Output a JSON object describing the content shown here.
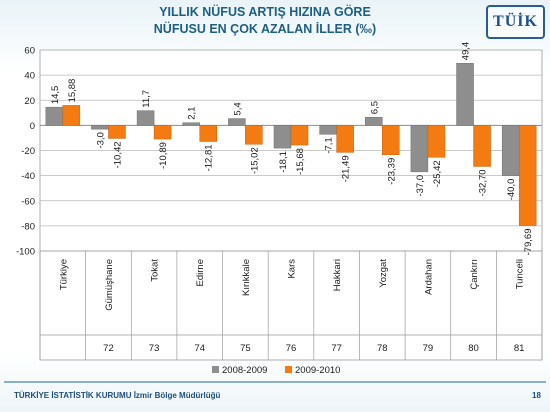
{
  "title": {
    "line1": "YILLIK NÜFUS ARTIŞ HIZINA GÖRE",
    "line2": "NÜFUSU EN ÇOK AZALAN İLLER (‰)"
  },
  "logo_text": "TÜİK",
  "footer": {
    "text": "TÜRKİYE İSTATİSTİK KURUMU İzmir Bölge Müdürlüğü",
    "page": "18"
  },
  "colors": {
    "series_2008_2009": "#8e8e8e",
    "series_2009_2010": "#f47b12",
    "title": "#1d5f80",
    "grid": "#b9b9b9"
  },
  "chart_data": {
    "type": "bar",
    "categories": [
      "Türkiye",
      "Gümüşhane",
      "Tokat",
      "Edirne",
      "Kırıkkale",
      "Kars",
      "Hakkari",
      "Yozgat",
      "Ardahan",
      "Çankırı",
      "Tunceli"
    ],
    "ranks": [
      "",
      "72",
      "73",
      "74",
      "75",
      "76",
      "77",
      "78",
      "79",
      "80",
      "81"
    ],
    "series": [
      {
        "name": "2008-2009",
        "values": [
          14.5,
          -3.0,
          11.7,
          2.1,
          5.4,
          -18.1,
          -7.1,
          6.5,
          -37.0,
          49.4,
          -40.0
        ],
        "labels": [
          "14,5",
          "-3,0",
          "11,7",
          "2,1",
          "5,4",
          "-18,1",
          "-7,1",
          "6,5",
          "-37,0",
          "49,4",
          "-40,0"
        ]
      },
      {
        "name": "2009-2010",
        "values": [
          15.88,
          -10.42,
          -10.89,
          -12.81,
          -15.02,
          -15.68,
          -21.49,
          -23.39,
          -25.42,
          -32.7,
          -79.69
        ],
        "labels": [
          "15,88",
          "-10,42",
          "-10,89",
          "-12,81",
          "-15,02",
          "-15,68",
          "-21,49",
          "-23,39",
          "-25,42",
          "-32,70",
          "-79,69"
        ]
      }
    ],
    "ylim": [
      -100,
      60
    ],
    "yticks": [
      60,
      40,
      20,
      0,
      -20,
      -40,
      -60,
      -80,
      -100
    ],
    "grid": true,
    "legend_position": "bottom"
  }
}
